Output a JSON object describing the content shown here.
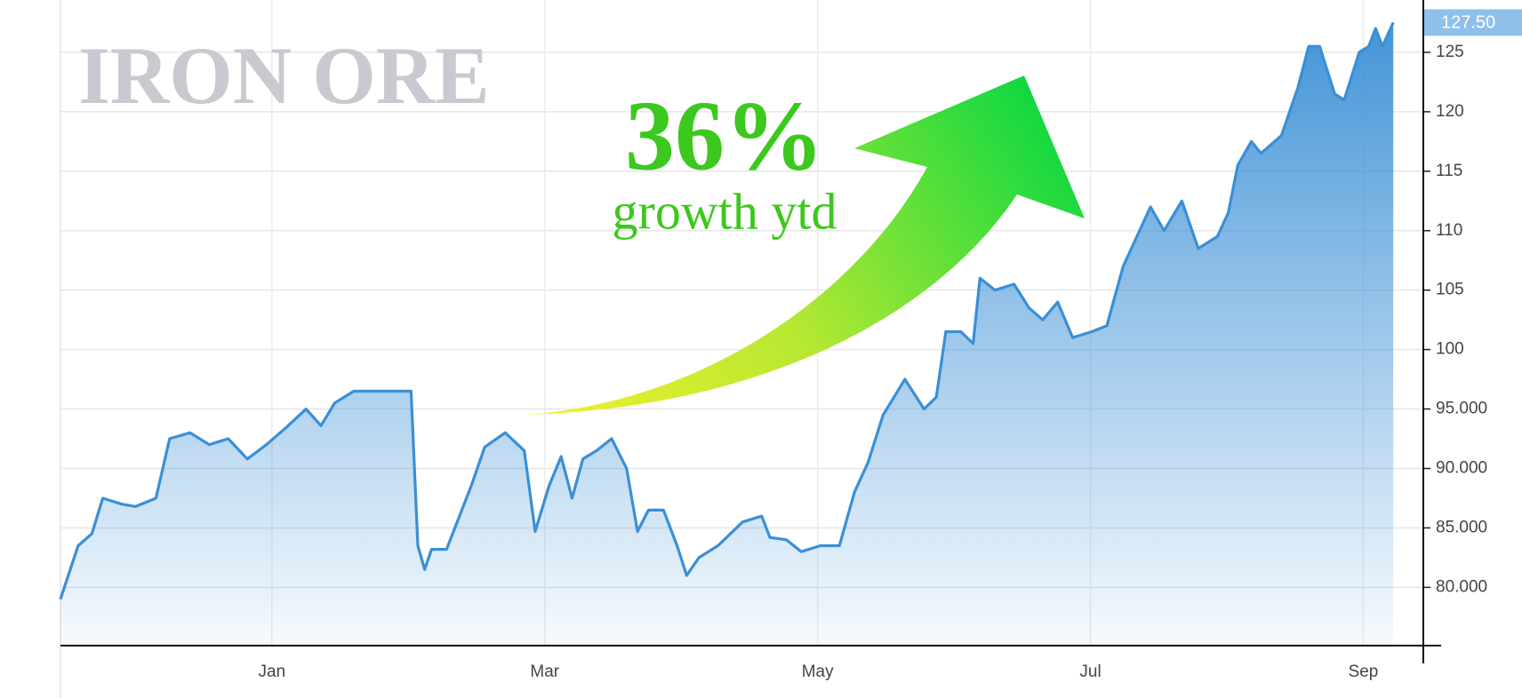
{
  "chart_data": {
    "type": "area",
    "title": "IRON ORE",
    "annotations": {
      "headline": "36%",
      "subtext": "growth ytd"
    },
    "x": [
      -0.55,
      -0.42,
      -0.32,
      -0.24,
      -0.1,
      0.0,
      0.15,
      0.25,
      0.4,
      0.54,
      0.68,
      0.82,
      0.96,
      1.11,
      1.25,
      1.36,
      1.46,
      1.6,
      1.85,
      2.02,
      2.07,
      2.12,
      2.17,
      2.28,
      2.46,
      2.56,
      2.71,
      2.85,
      2.93,
      3.03,
      3.12,
      3.2,
      3.28,
      3.38,
      3.49,
      3.6,
      3.68,
      3.76,
      3.87,
      3.97,
      4.04,
      4.13,
      4.27,
      4.45,
      4.59,
      4.65,
      4.77,
      4.88,
      5.02,
      5.16,
      5.27,
      5.37,
      5.48,
      5.64,
      5.78,
      5.87,
      5.94,
      6.05,
      6.14,
      6.19,
      6.3,
      6.44,
      6.55,
      6.65,
      6.76,
      6.87,
      7.01,
      7.12,
      7.24,
      7.44,
      7.54,
      7.67,
      7.79,
      7.93,
      8.01,
      8.08,
      8.18,
      8.25,
      8.4,
      8.52,
      8.6,
      8.68,
      8.79,
      8.86,
      8.97,
      9.04,
      9.09,
      9.14,
      9.22
    ],
    "series": [
      {
        "color": "#3a8fd6",
        "values": [
          79,
          83.5,
          84.5,
          87.5,
          87,
          86.8,
          87.5,
          92.5,
          93,
          92,
          92.5,
          90.8,
          92,
          93.5,
          95,
          93.6,
          95.5,
          96.5,
          96.5,
          96.5,
          83.5,
          81.5,
          83.2,
          83.2,
          88.5,
          91.8,
          93,
          91.5,
          84.7,
          88.5,
          91,
          87.5,
          90.8,
          91.5,
          92.5,
          90,
          84.7,
          86.5,
          86.5,
          83.5,
          81,
          82.5,
          83.5,
          85.5,
          86,
          84.2,
          84,
          83,
          83.5,
          83.5,
          88,
          90.5,
          94.5,
          97.5,
          95,
          96,
          101.5,
          101.5,
          100.5,
          106,
          105,
          105.5,
          103.5,
          102.5,
          104,
          101,
          101.5,
          102,
          107,
          112,
          110,
          112.5,
          108.5,
          109.5,
          111.5,
          115.5,
          117.5,
          116.5,
          118,
          122,
          125.5,
          125.5,
          121.5,
          121,
          125,
          125.5,
          127,
          125.5,
          127.5
        ]
      }
    ],
    "current_price": {
      "value": 127.5,
      "label": "127.50"
    },
    "xlim": [
      -0.55,
      9.44
    ],
    "xticks": [
      {
        "value": 1,
        "label": "Jan"
      },
      {
        "value": 3,
        "label": "Mar"
      },
      {
        "value": 5,
        "label": "May"
      },
      {
        "value": 7,
        "label": "Jul"
      },
      {
        "value": 9,
        "label": "Sep"
      }
    ],
    "ylim": [
      75.1,
      129.4
    ],
    "yticks": [
      125,
      120,
      115,
      110,
      105,
      100,
      {
        "value": 95,
        "label": "95.000"
      },
      {
        "value": 90,
        "label": "90.000"
      },
      {
        "value": 85,
        "label": "85.000"
      },
      {
        "value": 80,
        "label": "80.000"
      }
    ],
    "grid": true
  }
}
